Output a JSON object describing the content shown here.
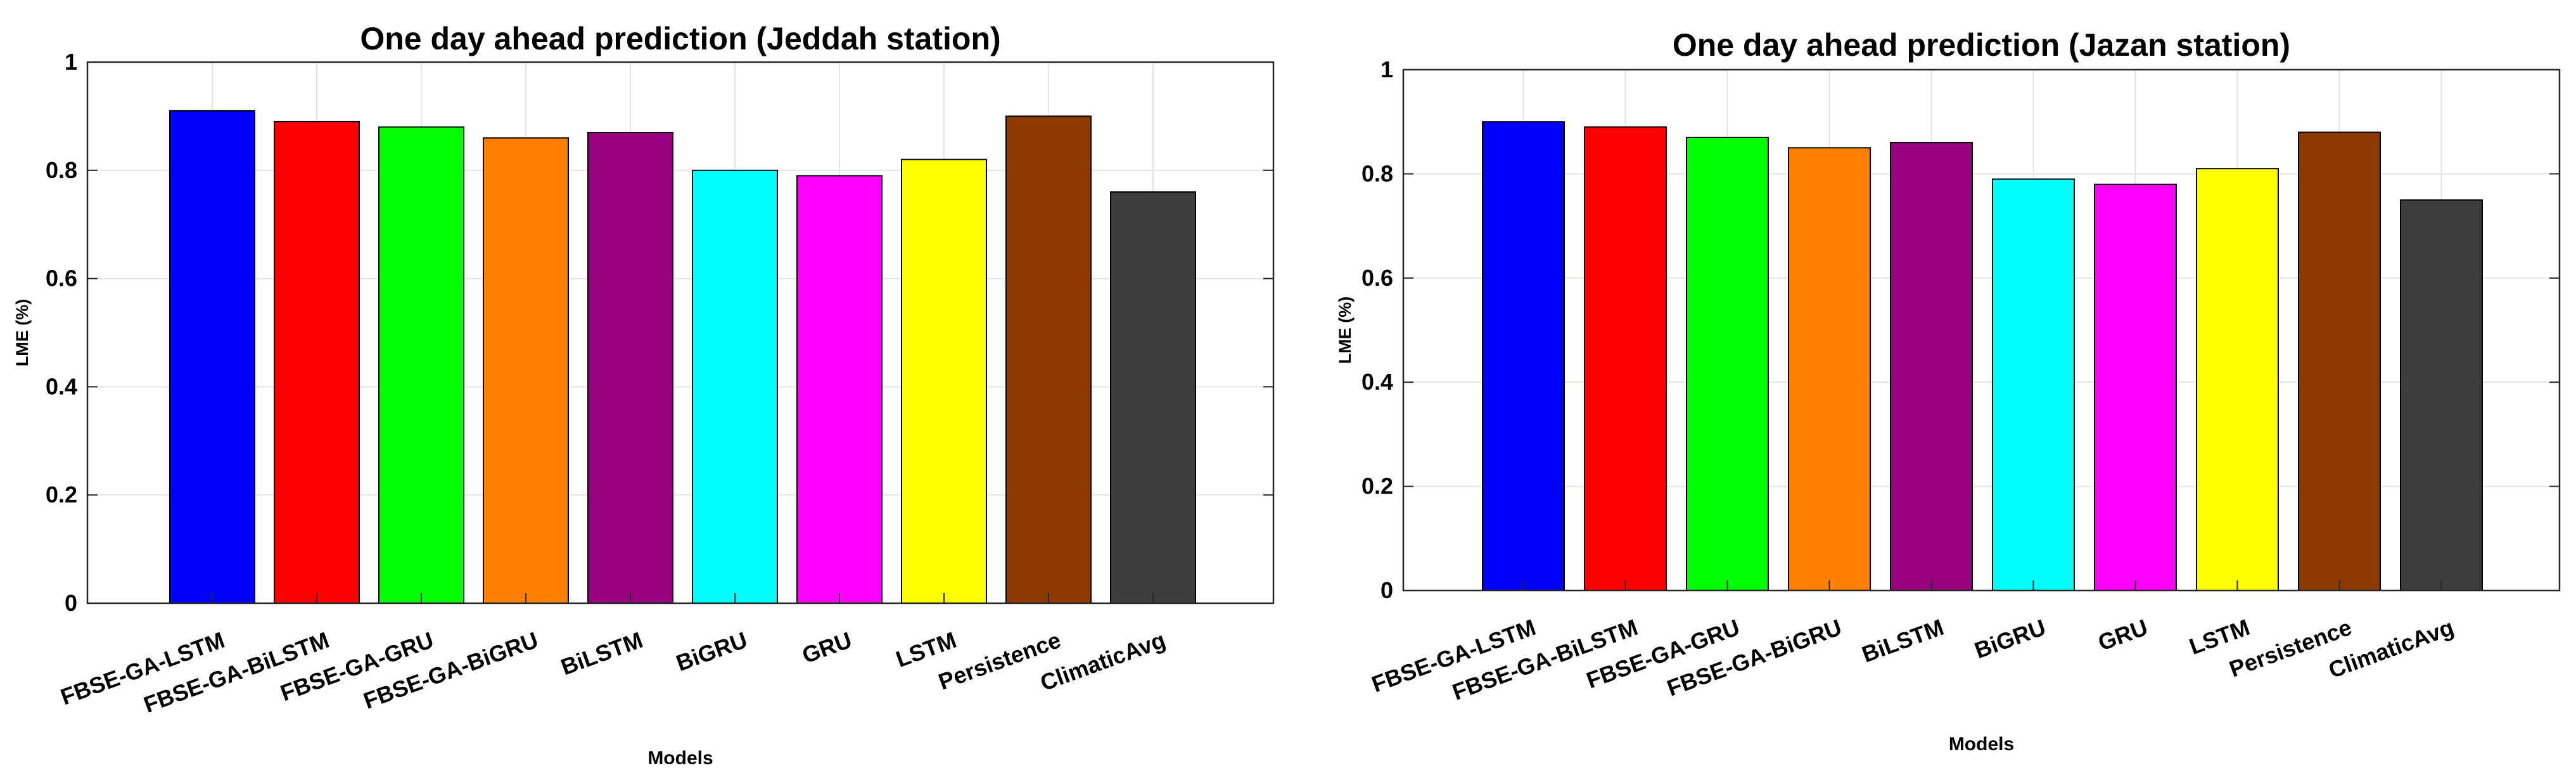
{
  "chart_data": [
    {
      "type": "bar",
      "title": "One day  ahead prediction  (Jeddah   station)",
      "xlabel": "Models",
      "ylabel": "LME (%)",
      "ylim": [
        0,
        1
      ],
      "yticks": [
        "0",
        "0.2",
        "0.4",
        "0.6",
        "0.8",
        "1"
      ],
      "grid": true,
      "categories": [
        "FBSE-GA-LSTM",
        "FBSE-GA-BiLSTM",
        "FBSE-GA-GRU",
        "FBSE-GA-BiGRU",
        "BiLSTM",
        "BiGRU",
        "GRU",
        "LSTM",
        "Persistence",
        "ClimaticAvg"
      ],
      "values": [
        0.91,
        0.89,
        0.88,
        0.86,
        0.87,
        0.8,
        0.79,
        0.82,
        0.9,
        0.76
      ],
      "colors": [
        "#0000ff",
        "#ff0000",
        "#00ff00",
        "#ff8000",
        "#990080",
        "#00ffff",
        "#ff00ff",
        "#ffff00",
        "#8c3a00",
        "#3d3d3d"
      ]
    },
    {
      "type": "bar",
      "title": "One day  ahead prediction  (Jazan  station)",
      "xlabel": "Models",
      "ylabel": "LME (%)",
      "ylim": [
        0,
        1
      ],
      "yticks": [
        "0",
        "0.2",
        "0.4",
        "0.6",
        "0.8",
        "1"
      ],
      "grid": true,
      "categories": [
        "FBSE-GA-LSTM",
        "FBSE-GA-BiLSTM",
        "FBSE-GA-GRU",
        "FBSE-GA-BiGRU",
        "BiLSTM",
        "BiGRU",
        "GRU",
        "LSTM",
        "Persistence",
        "ClimaticAvg"
      ],
      "values": [
        0.9,
        0.89,
        0.87,
        0.85,
        0.86,
        0.79,
        0.78,
        0.81,
        0.88,
        0.75
      ],
      "colors": [
        "#0000ff",
        "#ff0000",
        "#00ff00",
        "#ff8000",
        "#990080",
        "#00ffff",
        "#ff00ff",
        "#ffff00",
        "#8c3a00",
        "#3d3d3d"
      ]
    }
  ]
}
